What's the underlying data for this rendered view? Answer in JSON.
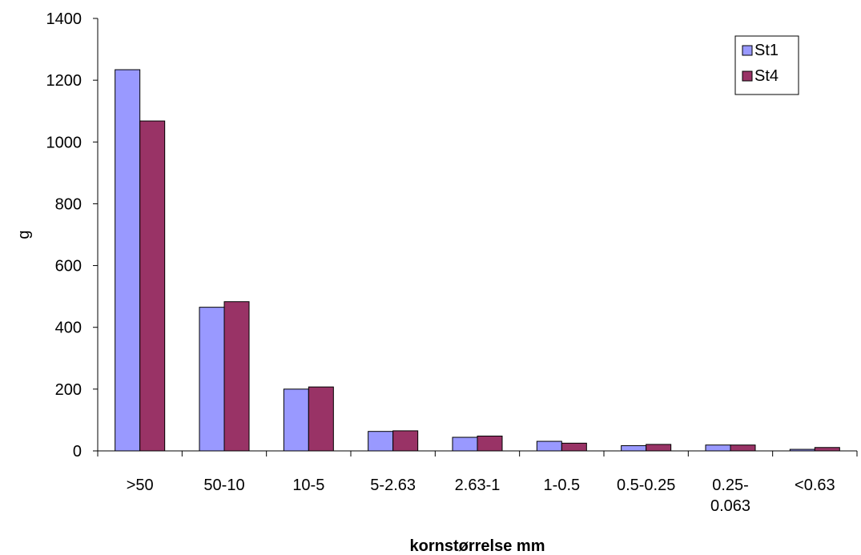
{
  "chart_data": {
    "type": "bar",
    "title": "",
    "xlabel": "kornstørrelse mm",
    "ylabel": "g",
    "ylim": [
      0,
      1400
    ],
    "yticks": [
      0,
      200,
      400,
      600,
      800,
      1000,
      1200,
      1400
    ],
    "categories": [
      ">50",
      "50-10",
      "10-5",
      "5-2.63",
      "2.63-1",
      "1-0.5",
      "0.5-0.25",
      "0.25-0.063",
      "<0.63"
    ],
    "category_lines": [
      [
        ">50"
      ],
      [
        "50-10"
      ],
      [
        "10-5"
      ],
      [
        "5-2.63"
      ],
      [
        "2.63-1"
      ],
      [
        "1-0.5"
      ],
      [
        "0.5-0.25"
      ],
      [
        "0.25-",
        "0.063"
      ],
      [
        "<0.63"
      ]
    ],
    "series": [
      {
        "name": "St1",
        "color": "#9999ff",
        "values": [
          1234,
          465,
          200,
          63,
          44,
          31,
          17,
          19,
          5
        ]
      },
      {
        "name": "St4",
        "color": "#993366",
        "values": [
          1068,
          483,
          207,
          65,
          48,
          25,
          21,
          19,
          11
        ]
      }
    ],
    "grid": false,
    "legend": "top-right"
  }
}
